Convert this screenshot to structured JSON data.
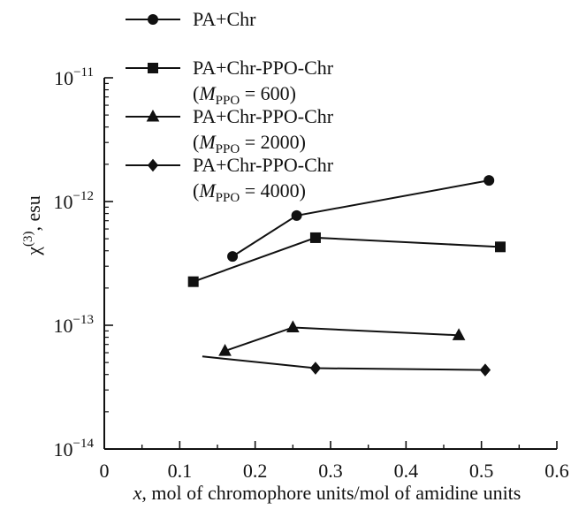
{
  "chart_data": {
    "type": "scatter",
    "xlabel": "x, mol of chromophore units/mol of amidine units",
    "ylabel": "χ(3), esu",
    "xlim": [
      0,
      0.6
    ],
    "ylim": [
      1e-14,
      1e-11
    ],
    "yscale": "log",
    "x_ticks": [
      "0",
      "0.1",
      "0.2",
      "0.3",
      "0.4",
      "0.5",
      "0.6"
    ],
    "y_ticks": [
      {
        "base": "10",
        "exp": "−14"
      },
      {
        "base": "10",
        "exp": "−13"
      },
      {
        "base": "10",
        "exp": "−12"
      },
      {
        "base": "10",
        "exp": "−11"
      }
    ],
    "grid": false,
    "legend_position": "top-left",
    "series": [
      {
        "name": "PA+Chr",
        "marker": "circle",
        "x": [
          0.17,
          0.255,
          0.51
        ],
        "y": [
          3.6e-13,
          7.7e-13,
          1.48e-12
        ]
      },
      {
        "name": "PA+Chr-PPO-Chr",
        "name_line2": "(MPPO = 600)",
        "marker": "square",
        "x": [
          0.118,
          0.28,
          0.525
        ],
        "y": [
          2.25e-13,
          5.1e-13,
          4.3e-13
        ]
      },
      {
        "name": "PA+Chr-PPO-Chr",
        "name_line2": "(MPPO = 2000)",
        "marker": "triangle",
        "x": [
          0.16,
          0.25,
          0.47
        ],
        "y": [
          6.2e-14,
          9.6e-14,
          8.3e-14
        ]
      },
      {
        "name": "PA+Chr-PPO-Chr",
        "name_line2": "(MPPO = 4000)",
        "marker": "diamond",
        "x": [
          0.13,
          0.28,
          0.505
        ],
        "y": [
          5.6e-14,
          4.5e-14,
          4.35e-14
        ],
        "marker_mask": [
          false,
          true,
          true
        ]
      }
    ],
    "legend_entries": [
      {
        "line1": "PA+Chr",
        "m_label": null
      },
      {
        "line1": "PA+Chr-PPO-Chr",
        "m_label": {
          "open": "(",
          "M": "M",
          "sub": "PPO",
          "rest": " = 600)"
        }
      },
      {
        "line1": "PA+Chr-PPO-Chr",
        "m_label": {
          "open": "(",
          "M": "M",
          "sub": "PPO",
          "rest": " = 2000)"
        }
      },
      {
        "line1": "PA+Chr-PPO-Chr",
        "m_label": {
          "open": "(",
          "M": "M",
          "sub": "PPO",
          "rest": " = 4000)"
        }
      }
    ],
    "ylabel_parts": {
      "chi": "χ",
      "sup": "(3)",
      "rest": ", esu"
    }
  }
}
